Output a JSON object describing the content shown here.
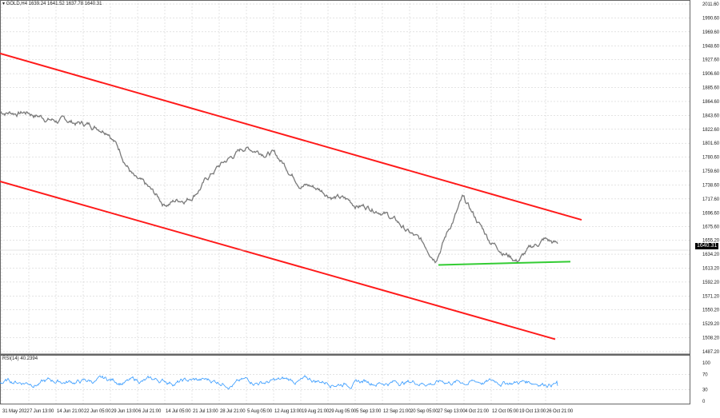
{
  "header": {
    "symbol": "GOLD,H4",
    "ohlc": "1639.24 1641.52 1637.78 1640.31"
  },
  "rsi_header": {
    "label": "RSI(14) 40.2394"
  },
  "current_price": "1640.31",
  "colors": {
    "price": "#7a7a7a",
    "channel": "#ff1a1a",
    "support": "#33cc33",
    "rsi": "#3399ff",
    "grid": "#c8c8c8"
  },
  "chart_data": [
    {
      "type": "line",
      "title": "GOLD,H4",
      "y_ticks": [
        "2011.60",
        "1990.60",
        "1969.60",
        "1948.60",
        "1927.60",
        "1906.60",
        "1885.60",
        "1864.60",
        "1843.60",
        "1822.60",
        "1801.60",
        "1780.60",
        "1759.60",
        "1738.60",
        "1717.60",
        "1696.60",
        "1675.60",
        "1655.20",
        "1634.20",
        "1613.20",
        "1592.20",
        "1571.20",
        "1550.20",
        "1529.20",
        "1508.20",
        "1487.20"
      ],
      "ylim": [
        1487.2,
        2011.6
      ],
      "x_ticks": [
        "31 May 2022",
        "7 Jun 13:00",
        "14 Jun 21:00",
        "22 Jun 05:00",
        "29 Jun 13:00",
        "6 Jul 21:00",
        "14 Jul 05:00",
        "21 Jul 13:00",
        "28 Jul 21:00",
        "5 Aug 05:00",
        "12 Aug 13:00",
        "19 Aug 21:00",
        "29 Aug 05:00",
        "5 Sep 13:00",
        "12 Sep 21:00",
        "20 Sep 05:00",
        "27 Sep 13:00",
        "4 Oct 21:00",
        "12 Oct 05:00",
        "19 Oct 13:00",
        "26 Oct 21:00"
      ],
      "grid": true,
      "series": [
        {
          "values": [
            1849,
            1849,
            1837,
            1831,
            1825,
            1746,
            1710,
            1722,
            1765,
            1795,
            1789,
            1746,
            1728,
            1710,
            1704,
            1668,
            1632,
            1716,
            1656,
            1626,
            1656,
            1640
          ]
        }
      ],
      "trendlines": [
        {
          "kind": "channel-upper",
          "start_price": 1937,
          "end_price": 1686
        },
        {
          "kind": "channel-lower",
          "start_price": 1744,
          "end_price": 1506
        },
        {
          "kind": "support",
          "start_price": 1618,
          "end_price": 1623
        }
      ]
    },
    {
      "type": "line",
      "title": "RSI(14)",
      "y_ticks": [
        "100",
        "70",
        "30",
        "0"
      ],
      "ylim": [
        0,
        100
      ],
      "levels": [
        70,
        30
      ],
      "last_value": 40.2394
    }
  ]
}
